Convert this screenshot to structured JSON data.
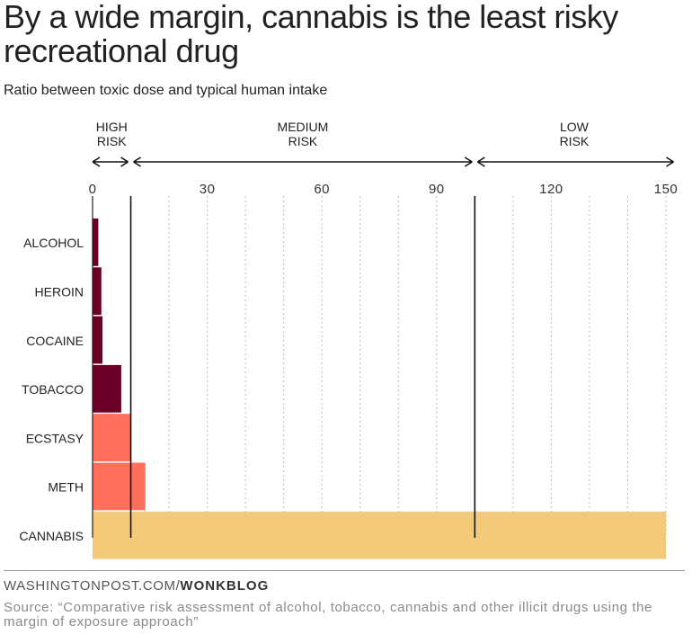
{
  "title": "By a wide margin, cannabis is the least risky recreational drug",
  "subtitle": "Ratio between toxic dose and typical human intake",
  "risk_bands": [
    {
      "label_line1": "HIGH",
      "label_line2": "RISK",
      "from": 0,
      "to": 10
    },
    {
      "label_line1": "MEDIUM",
      "label_line2": "RISK",
      "from": 10,
      "to": 100
    },
    {
      "label_line1": "LOW",
      "label_line2": "RISK",
      "from": 100,
      "to": 152
    }
  ],
  "chart_data": {
    "type": "bar",
    "orientation": "horizontal",
    "categories": [
      "ALCOHOL",
      "HEROIN",
      "COCAINE",
      "TOBACCO",
      "ECSTASY",
      "METH",
      "CANNABIS"
    ],
    "values": [
      1.5,
      2.3,
      2.6,
      7.5,
      10,
      13.8,
      150
    ],
    "bar_colors": [
      "#6b0026",
      "#6b0026",
      "#6b0026",
      "#6b0026",
      "#ff6f5c",
      "#ff6f5c",
      "#f3ca7a"
    ],
    "xticks": [
      0,
      30,
      60,
      90,
      120,
      150
    ],
    "xlim": [
      0,
      152
    ],
    "threshold_lines": [
      10,
      100
    ],
    "grid": "dotted vertical every 10"
  },
  "footer": {
    "site": "WASHINGTONPOST.COM/",
    "section": "WONKBLOG",
    "source": "Source: “Comparative risk assessment of alcohol, tobacco, cannabis and other illicit drugs using the margin of exposure approach”"
  }
}
